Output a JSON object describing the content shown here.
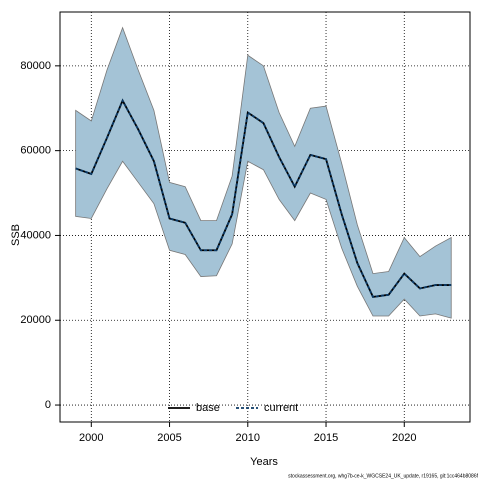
{
  "chart_data": {
    "type": "line",
    "xlabel": "Years",
    "ylabel": "SSB",
    "footer": "stockassessment.org, whg7b-ce-k_WGCSE24_UK_update, r19165, git:1cc464b8086f",
    "x": [
      1999,
      2000,
      2001,
      2002,
      2003,
      2004,
      2005,
      2006,
      2007,
      2008,
      2009,
      2010,
      2011,
      2012,
      2013,
      2014,
      2015,
      2016,
      2017,
      2018,
      2019,
      2020,
      2021,
      2022,
      2023
    ],
    "band": {
      "color": "#a4c3d6",
      "upper": [
        69500,
        67000,
        79000,
        89000,
        79000,
        69500,
        52500,
        51500,
        43500,
        43500,
        54000,
        82500,
        80000,
        69000,
        61000,
        70000,
        70500,
        57000,
        42500,
        31000,
        31500,
        39500,
        35000,
        37500,
        39500
      ],
      "lower": [
        44500,
        44000,
        51000,
        57500,
        52500,
        47500,
        36500,
        35500,
        30300,
        30500,
        38000,
        57500,
        55500,
        48500,
        43500,
        50000,
        48500,
        37000,
        28000,
        21000,
        21000,
        25000,
        21000,
        21500,
        20500
      ]
    },
    "series": [
      {
        "name": "base",
        "color": "#000000",
        "dash": false,
        "values": [
          55800,
          54500,
          63000,
          71800,
          65000,
          57500,
          44000,
          43000,
          36500,
          36500,
          45000,
          69000,
          66500,
          58500,
          51500,
          59000,
          58000,
          45000,
          33500,
          25500,
          26000,
          31000,
          27500,
          28300,
          28300
        ]
      },
      {
        "name": "current",
        "color": "#0b3a66",
        "dash": true,
        "values": [
          55800,
          54500,
          63000,
          71800,
          65000,
          57500,
          44000,
          43000,
          36500,
          36500,
          45000,
          69000,
          66500,
          58500,
          51500,
          59000,
          58000,
          45000,
          33500,
          25500,
          26000,
          31000,
          27500,
          28300,
          28300
        ]
      }
    ],
    "xlim": [
      1998,
      2024.2
    ],
    "ylim": [
      -4000,
      92700
    ],
    "xticks": [
      2000,
      2005,
      2010,
      2015,
      2020
    ],
    "yticks": [
      0,
      20000,
      40000,
      60000,
      80000
    ],
    "grid": true
  }
}
